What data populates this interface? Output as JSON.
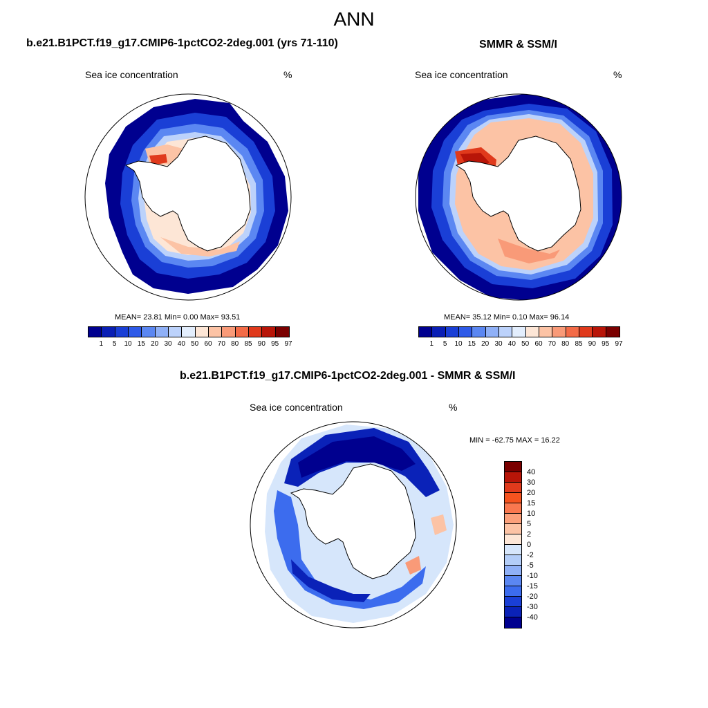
{
  "figure": {
    "title": "ANN"
  },
  "panels": [
    {
      "title": "b.e21.B1PCT.f19_g17.CMIP6-1pctCO2-2deg.001 (yrs 71-110)",
      "variable": "Sea ice concentration",
      "units": "%",
      "stats": "MEAN=  23.81  Min=   0.00  Max=  93.51"
    },
    {
      "title": "SMMR & SSM/I",
      "variable": "Sea ice concentration",
      "units": "%",
      "stats": "MEAN=  35.12  Min=   0.10  Max=  96.14"
    },
    {
      "title": "b.e21.B1PCT.f19_g17.CMIP6-1pctCO2-2deg.001 - SMMR & SSM/I",
      "variable": "Sea ice concentration",
      "units": "%",
      "stats": "MIN = -62.75 MAX =  16.22"
    }
  ],
  "colorbar_levels": {
    "ticks": [
      "1",
      "5",
      "10",
      "15",
      "20",
      "30",
      "40",
      "50",
      "60",
      "70",
      "80",
      "85",
      "90",
      "95",
      "97"
    ],
    "colors": [
      "#00008f",
      "#0a1fb5",
      "#1a3fd6",
      "#2e5ae8",
      "#5b87f2",
      "#8fb0f7",
      "#bcd2fb",
      "#e3eefd",
      "#fde6d6",
      "#fcc3a5",
      "#f99a78",
      "#f36b47",
      "#e03a1c",
      "#b81508",
      "#7a0000"
    ]
  },
  "diff_colorbar": {
    "ticks": [
      "40",
      "30",
      "20",
      "15",
      "10",
      "5",
      "2",
      "0",
      "-2",
      "-5",
      "-10",
      "-15",
      "-20",
      "-30",
      "-40"
    ],
    "colors": [
      "#7a0000",
      "#b81508",
      "#e03a1c",
      "#f5531f",
      "#f9784f",
      "#fba07b",
      "#fcc3a5",
      "#fde6d6",
      "#d6e6fb",
      "#b3cdf8",
      "#8fb0f7",
      "#5b87f2",
      "#3c6cee",
      "#1a3fd6",
      "#0a22b8",
      "#00008f"
    ]
  }
}
